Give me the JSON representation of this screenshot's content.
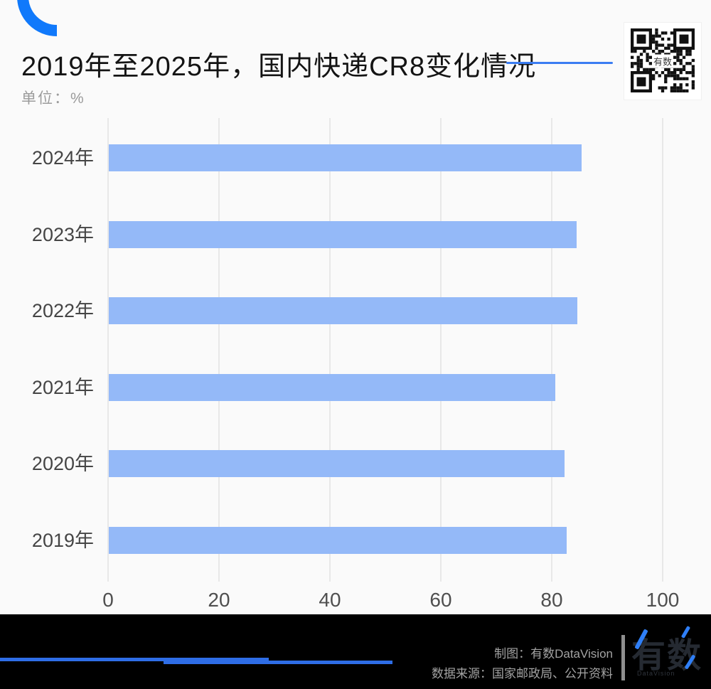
{
  "header": {
    "title": "2019年至2025年，国内快递CR8变化情况",
    "unit_label": "单位：%"
  },
  "qr": {
    "center_label": "有数"
  },
  "chart_data": {
    "type": "bar",
    "orientation": "horizontal",
    "title": "2019年至2025年，国内快递CR8变化情况",
    "unit": "%",
    "categories": [
      "2024年",
      "2023年",
      "2022年",
      "2021年",
      "2020年",
      "2019年"
    ],
    "values": [
      85.2,
      84.3,
      84.5,
      80.5,
      82.2,
      82.5
    ],
    "x_ticks": [
      0,
      20,
      40,
      60,
      80,
      100
    ],
    "xlim": [
      0,
      100
    ],
    "grid": true,
    "legend": false,
    "bar_color": "#94b9f8",
    "gridline_color": "#e8e8e8"
  },
  "footer": {
    "credit1": "制图：有数DataVision",
    "credit2": "数据来源：国家邮政局、公开资料",
    "logo_text": "有数",
    "logo_subtext": "DataVision"
  },
  "colors": {
    "accent_blue": "#1079fb",
    "title_underline": "#3b7df2",
    "footer_line": "#2e6de6",
    "background": "#fafafa",
    "footer_background": "#000000"
  }
}
